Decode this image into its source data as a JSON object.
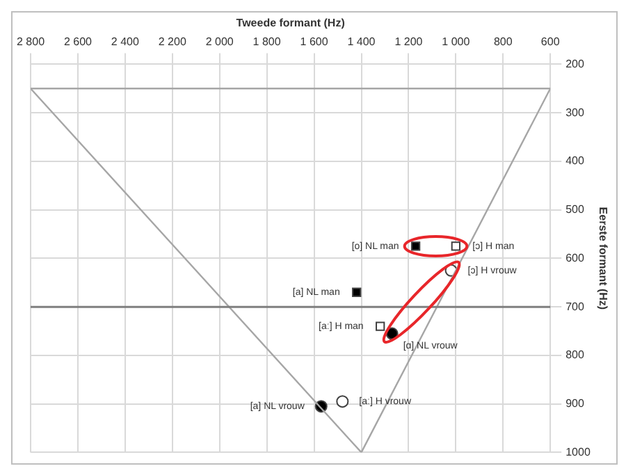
{
  "chart_data": {
    "type": "scatter",
    "xlabel": "Tweede formant (Hz)",
    "ylabel": "Eerste formant (Hz)",
    "xlim": [
      2800,
      600
    ],
    "ylim": [
      1000,
      200
    ],
    "xticks": [
      {
        "value": 2800,
        "label": "2 800"
      },
      {
        "value": 2600,
        "label": "2 600"
      },
      {
        "value": 2400,
        "label": "2 400"
      },
      {
        "value": 2200,
        "label": "2 200"
      },
      {
        "value": 2000,
        "label": "2 000"
      },
      {
        "value": 1800,
        "label": "1 800"
      },
      {
        "value": 1600,
        "label": "1 600"
      },
      {
        "value": 1400,
        "label": "1 400"
      },
      {
        "value": 1200,
        "label": "1 200"
      },
      {
        "value": 1000,
        "label": "1 000"
      },
      800,
      600
    ],
    "yticks": [
      200,
      300,
      400,
      500,
      600,
      700,
      800,
      900,
      1000
    ],
    "grid": true,
    "legend": false,
    "ref_lines": [
      {
        "axis": "y",
        "value": 700,
        "color": "#7f7f7f"
      },
      {
        "axis": "y",
        "value": 250,
        "color": "#a6a6a6"
      }
    ],
    "series": [
      {
        "type": "line",
        "color": "#a6a6a6",
        "marker": "none",
        "x": [
          2800,
          1400,
          600
        ],
        "values": [
          250,
          1000,
          250
        ]
      },
      {
        "name": "[o] NL man",
        "color": "#000000",
        "marker": "square",
        "x": [
          1170
        ],
        "values": [
          575
        ]
      },
      {
        "name": "[ɔ] H man",
        "color": "#ffffff",
        "marker": "square",
        "x": [
          1000
        ],
        "values": [
          575
        ]
      },
      {
        "name": "[ɔ] H vrouw",
        "color": "#ffffff",
        "marker": "circle",
        "x": [
          1020
        ],
        "values": [
          625
        ]
      },
      {
        "name": "[a] NL man",
        "color": "#000000",
        "marker": "square",
        "x": [
          1420
        ],
        "values": [
          670
        ]
      },
      {
        "name": "[aː] H man",
        "color": "#ffffff",
        "marker": "square",
        "x": [
          1320
        ],
        "values": [
          740
        ]
      },
      {
        "name": "[ɑ] NL vrouw",
        "color": "#000000",
        "marker": "circle",
        "x": [
          1270
        ],
        "values": [
          755
        ]
      },
      {
        "name": "[aː] H vrouw",
        "color": "#ffffff",
        "marker": "circle",
        "x": [
          1480
        ],
        "values": [
          895
        ]
      },
      {
        "name": "[a] NL vrouw",
        "color": "#000000",
        "marker": "circle",
        "x": [
          1570
        ],
        "values": [
          905
        ]
      }
    ]
  }
}
